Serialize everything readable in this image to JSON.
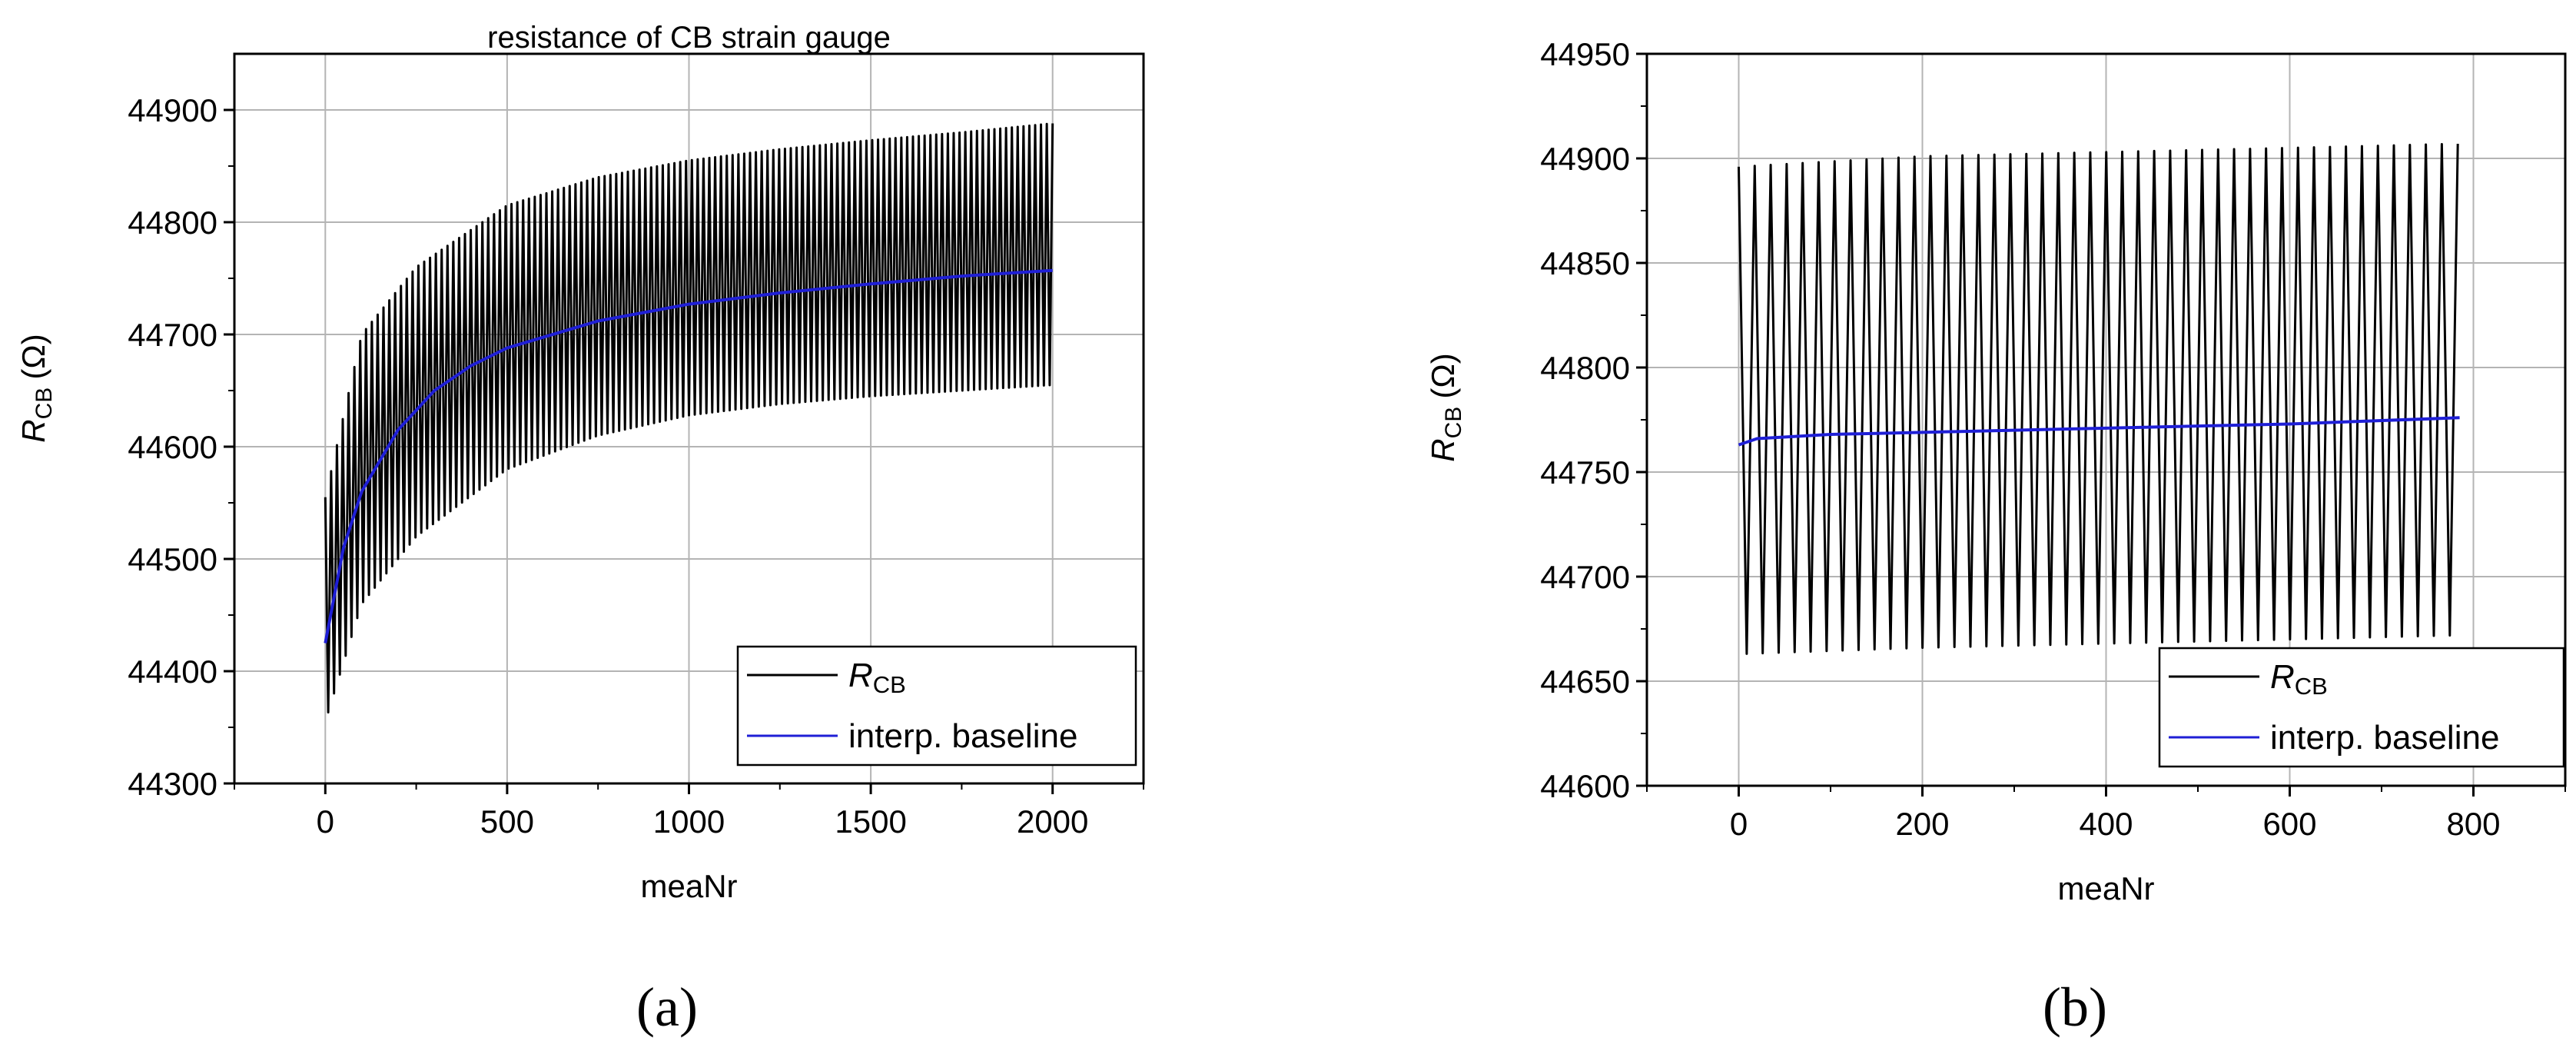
{
  "chart_data": [
    {
      "type": "line",
      "panel": "(a)",
      "title": "resistance of CB strain gauge",
      "xlabel": "meaNr",
      "ylabel_main": "R",
      "ylabel_sub": "CB",
      "ylabel_unit": "(Ω)",
      "xlim": [
        -250,
        2250
      ],
      "ylim": [
        44300,
        44950
      ],
      "xticks": [
        0,
        500,
        1000,
        1500,
        2000
      ],
      "yticks": [
        44300,
        44400,
        44500,
        44600,
        44700,
        44800,
        44900
      ],
      "grid": true,
      "legend_position": "bottom-right",
      "series": [
        {
          "name_main": "R",
          "name_sub": "CB",
          "color": "#000000",
          "kind": "oscillating",
          "x_range": [
            0,
            2000
          ],
          "period": 16,
          "upper": [
            [
              0,
              44555
            ],
            [
              100,
              44700
            ],
            [
              250,
              44760
            ],
            [
              500,
              44815
            ],
            [
              750,
              44840
            ],
            [
              1000,
              44855
            ],
            [
              1250,
              44865
            ],
            [
              1500,
              44873
            ],
            [
              1750,
              44880
            ],
            [
              2000,
              44888
            ]
          ],
          "lower": [
            [
              0,
              44355
            ],
            [
              100,
              44460
            ],
            [
              250,
              44520
            ],
            [
              500,
              44580
            ],
            [
              750,
              44610
            ],
            [
              1000,
              44628
            ],
            [
              1250,
              44638
            ],
            [
              1500,
              44645
            ],
            [
              1750,
              44650
            ],
            [
              2000,
              44655
            ]
          ]
        },
        {
          "name": "interp. baseline",
          "color": "#1f1fd6",
          "kind": "line",
          "points": [
            [
              0,
              44425
            ],
            [
              50,
              44510
            ],
            [
              100,
              44560
            ],
            [
              200,
              44615
            ],
            [
              300,
              44650
            ],
            [
              400,
              44672
            ],
            [
              500,
              44688
            ],
            [
              750,
              44712
            ],
            [
              1000,
              44727
            ],
            [
              1250,
              44737
            ],
            [
              1500,
              44745
            ],
            [
              1750,
              44752
            ],
            [
              2000,
              44757
            ]
          ]
        }
      ]
    },
    {
      "type": "line",
      "panel": "(b)",
      "title": "",
      "xlabel": "meaNr",
      "ylabel_main": "R",
      "ylabel_sub": "CB",
      "ylabel_unit": "(Ω)",
      "xlim": [
        -100,
        900
      ],
      "ylim": [
        44600,
        44950
      ],
      "xticks": [
        0,
        200,
        400,
        600,
        800
      ],
      "yticks": [
        44600,
        44650,
        44700,
        44750,
        44800,
        44850,
        44900,
        44950
      ],
      "grid": true,
      "legend_position": "bottom-right",
      "series": [
        {
          "name_main": "R",
          "name_sub": "CB",
          "color": "#000000",
          "kind": "oscillating",
          "x_range": [
            0,
            785
          ],
          "period": 17.4,
          "upper": [
            [
              0,
              44896
            ],
            [
              200,
              44901
            ],
            [
              400,
              44903
            ],
            [
              600,
              44905
            ],
            [
              785,
              44907
            ]
          ],
          "lower": [
            [
              0,
              44663
            ],
            [
              200,
              44666
            ],
            [
              400,
              44668
            ],
            [
              600,
              44670
            ],
            [
              785,
              44672
            ]
          ]
        },
        {
          "name": "interp. baseline",
          "color": "#1f1fd6",
          "kind": "line",
          "points": [
            [
              0,
              44763
            ],
            [
              20,
              44766
            ],
            [
              100,
              44768
            ],
            [
              200,
              44769
            ],
            [
              400,
              44771
            ],
            [
              600,
              44773
            ],
            [
              785,
              44776
            ]
          ]
        }
      ]
    }
  ]
}
